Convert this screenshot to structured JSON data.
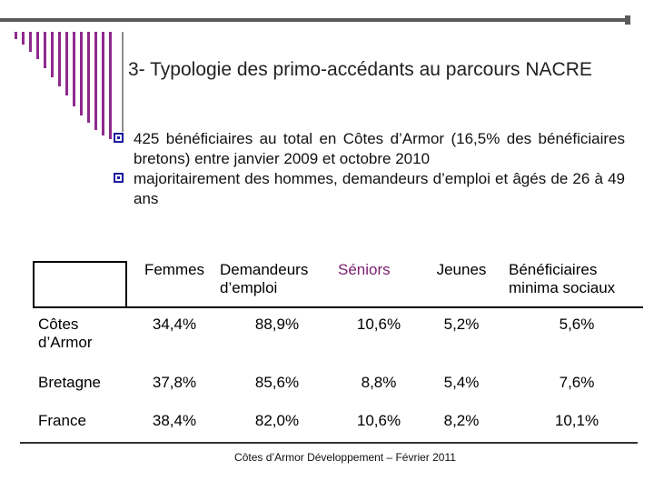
{
  "slide": {
    "title": "3- Typologie des primo-accédants au parcours NACRE",
    "bullets": [
      "425 bénéficiaires au total en Côtes d’Armor (16,5% des bénéficiaires bretons) entre janvier 2009 et octobre 2010",
      "majoritairement des hommes, demandeurs d’emploi et âgés de 26 à 49 ans"
    ],
    "accent_color": "#8e2a8e",
    "bullet_color": "#1a1aa0",
    "seniors_color": "#7b1e6e",
    "footer": "Côtes d’Armor Développement – Février 2011"
  },
  "table": {
    "headers": [
      "Femmes",
      "Demandeurs d’emploi",
      "Séniors",
      "Jeunes",
      "Bénéficiaires minima sociaux"
    ],
    "rows": [
      {
        "label": "Côtes d’Armor",
        "values": [
          "34,4%",
          "88,9%",
          "10,6%",
          "5,2%",
          "5,6%"
        ]
      },
      {
        "label": "Bretagne",
        "values": [
          "37,8%",
          "85,6%",
          "8,8%",
          "5,4%",
          "7,6%"
        ]
      },
      {
        "label": "France",
        "values": [
          "38,4%",
          "82,0%",
          "10,6%",
          "8,2%",
          "10,1%"
        ]
      }
    ]
  }
}
